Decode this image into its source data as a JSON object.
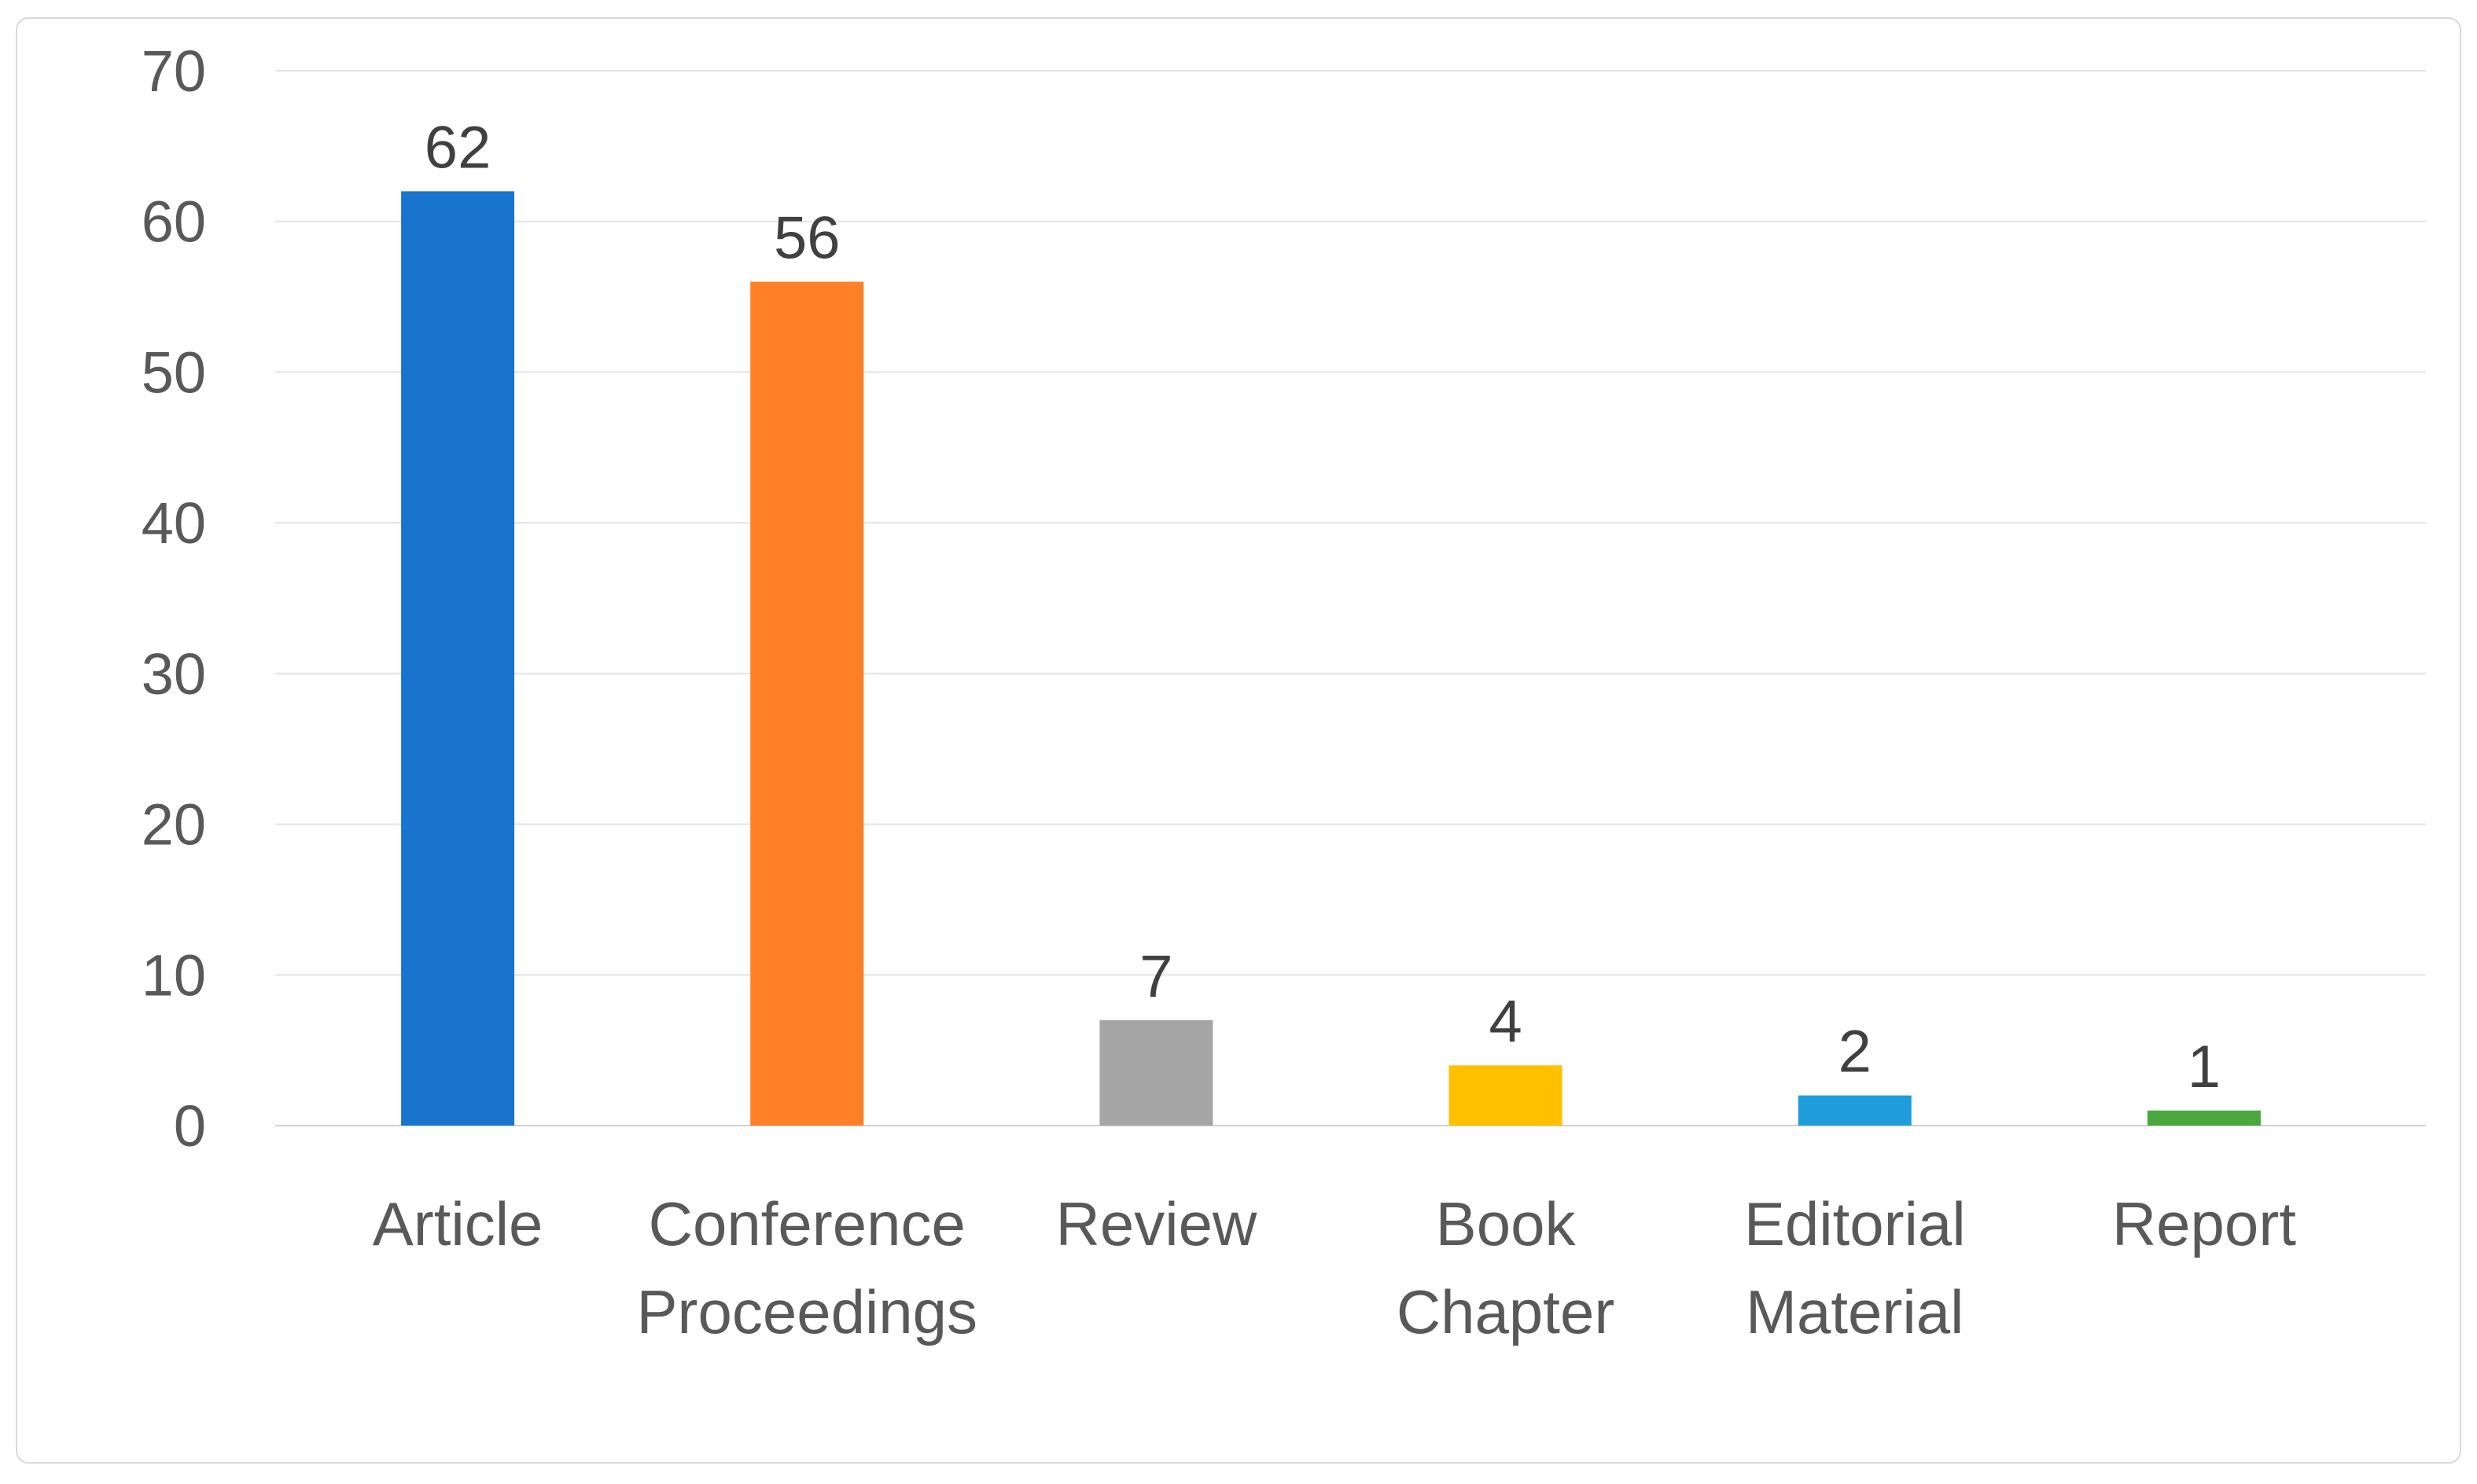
{
  "chart_data": {
    "type": "bar",
    "categories": [
      [
        "Article"
      ],
      [
        "Conference",
        "Proceedings"
      ],
      [
        "Review"
      ],
      [
        "Book",
        "Chapter"
      ],
      [
        "Editorial",
        "Material"
      ],
      [
        "Report"
      ]
    ],
    "values": [
      62,
      56,
      7,
      4,
      2,
      1
    ],
    "colors": [
      "#1874CD",
      "#FF7F27",
      "#A6A6A6",
      "#FFC000",
      "#1E9CDB",
      "#4BA83E"
    ],
    "yticks": [
      "0",
      "10",
      "20",
      "30",
      "40",
      "50",
      "60",
      "70"
    ],
    "ylim": [
      0,
      70
    ],
    "grid": true,
    "data_labels": true,
    "legend": "none"
  }
}
